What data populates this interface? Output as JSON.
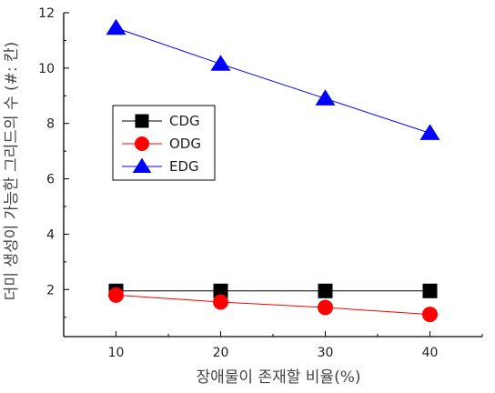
{
  "chart_data": {
    "type": "line",
    "xlabel": "장애물이 존재할 비율(%)",
    "ylabel": "더미 생성이 가능한 그리드의 수 (#: 칸)",
    "x": [
      10,
      20,
      30,
      40
    ],
    "xticks": [
      10,
      20,
      30,
      40
    ],
    "yticks": [
      2,
      4,
      6,
      8,
      10,
      12
    ],
    "xlim": [
      5,
      45
    ],
    "ylim": [
      0.3,
      12
    ],
    "legend_position": "center-left",
    "grid": false,
    "series": [
      {
        "name": "CDG",
        "values": [
          1.95,
          1.95,
          1.95,
          1.95
        ],
        "color": "#000000",
        "marker": "square"
      },
      {
        "name": "ODG",
        "values": [
          1.8,
          1.55,
          1.35,
          1.1
        ],
        "color": "#ff0000",
        "marker": "circle"
      },
      {
        "name": "EDG",
        "values": [
          11.45,
          10.15,
          8.9,
          7.65
        ],
        "color": "#0000ff",
        "marker": "triangle"
      }
    ]
  }
}
